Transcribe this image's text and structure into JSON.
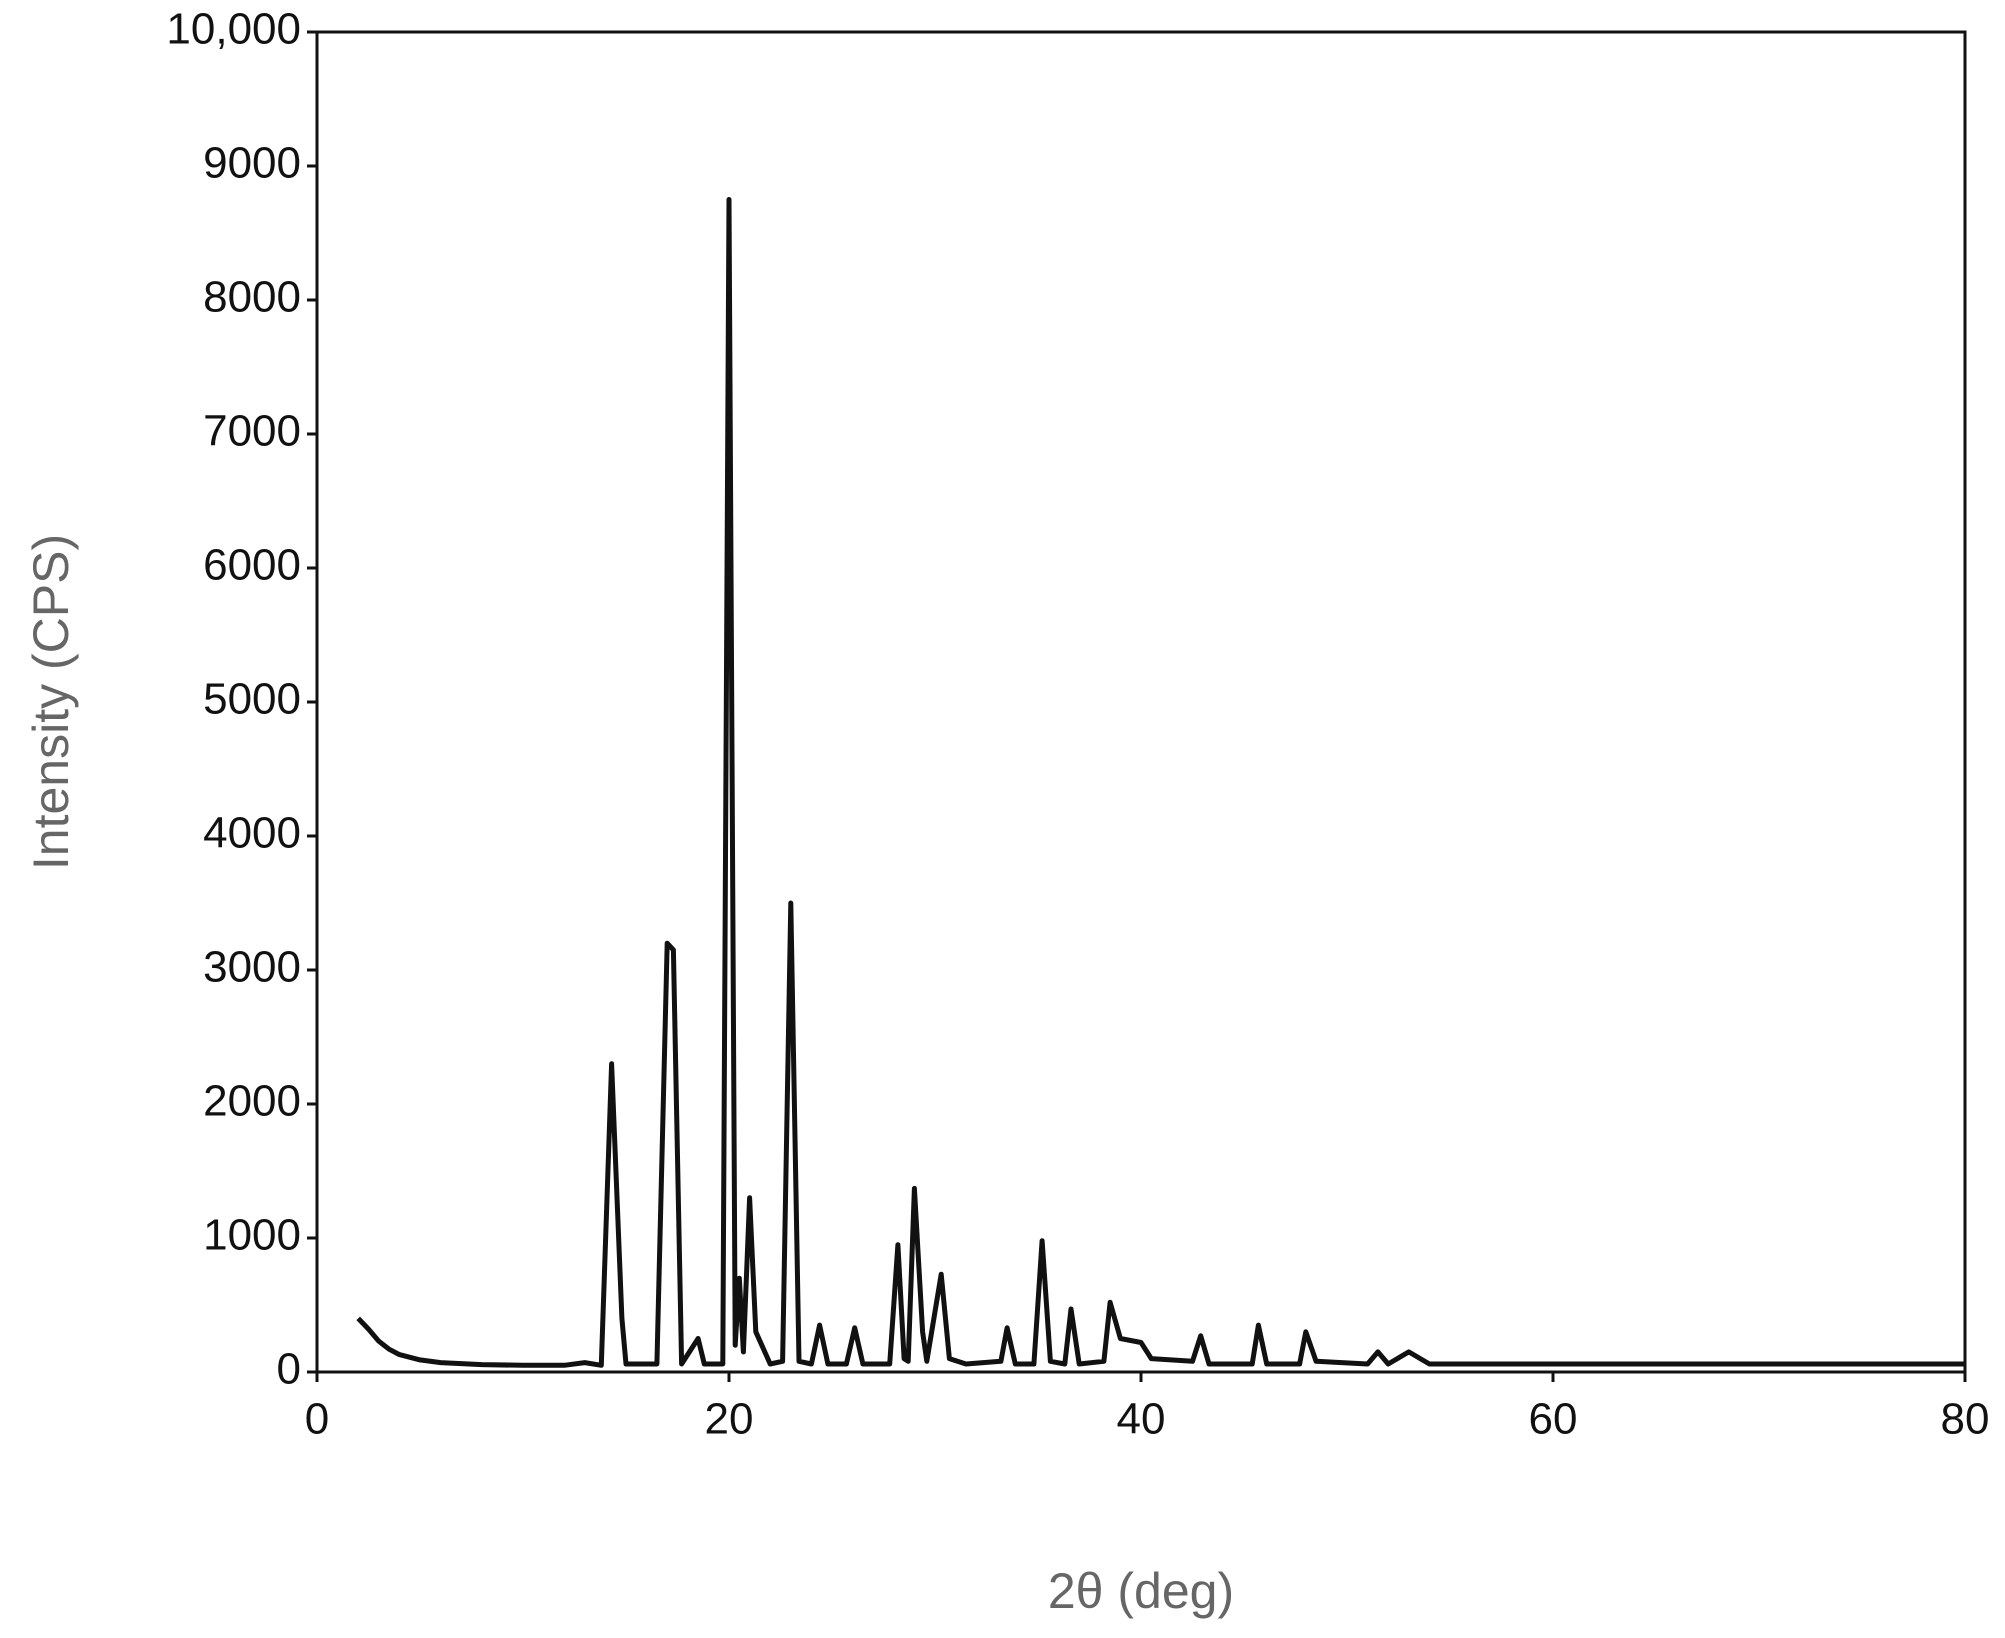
{
  "chart_data": {
    "type": "line",
    "x_label": "2θ (deg)",
    "y_label": "Intensity (CPS)",
    "x": [
      2,
      2.5,
      3,
      3.5,
      4,
      5,
      6,
      8,
      10,
      12,
      13,
      13.8,
      14.3,
      14.8,
      15,
      16.5,
      17,
      17.3,
      17.7,
      18.5,
      18.8,
      19.1,
      19.7,
      20,
      20.3,
      20.5,
      20.7,
      21,
      21.3,
      22,
      22.6,
      23,
      23.4,
      24,
      24.4,
      24.8,
      25.7,
      26.1,
      26.5,
      27.8,
      28.2,
      28.5,
      28.7,
      29,
      29.4,
      29.6,
      30.3,
      30.7,
      31.5,
      33.2,
      33.5,
      33.9,
      34.8,
      35.2,
      35.6,
      36.3,
      36.6,
      37,
      38.2,
      38.5,
      39,
      40,
      40.5,
      42.5,
      42.9,
      43.3,
      45.4,
      45.7,
      46.1,
      47.7,
      48,
      48.5,
      51,
      51.5,
      52,
      53,
      54,
      60,
      70,
      80
    ],
    "values": [
      400,
      320,
      230,
      170,
      130,
      90,
      70,
      55,
      50,
      50,
      70,
      50,
      2300,
      400,
      60,
      60,
      3200,
      3150,
      60,
      250,
      60,
      60,
      60,
      8750,
      200,
      700,
      150,
      1300,
      300,
      60,
      80,
      3500,
      80,
      60,
      350,
      60,
      60,
      330,
      60,
      60,
      950,
      100,
      80,
      1370,
      300,
      80,
      730,
      100,
      60,
      80,
      330,
      60,
      60,
      980,
      80,
      60,
      470,
      60,
      80,
      520,
      250,
      220,
      100,
      80,
      270,
      60,
      60,
      350,
      60,
      60,
      300,
      80,
      60,
      150,
      60,
      150,
      60,
      60,
      60,
      60
    ],
    "color": "#111111",
    "xlim": [
      0,
      80
    ],
    "xticks": [
      0,
      20,
      40,
      60,
      80
    ],
    "ylim": [
      0,
      10000
    ],
    "yticks": [
      0,
      1000,
      2000,
      3000,
      4000,
      5000,
      6000,
      7000,
      8000,
      9000,
      {
        "value": 10000,
        "label": "10,000"
      }
    ],
    "grid": false
  }
}
